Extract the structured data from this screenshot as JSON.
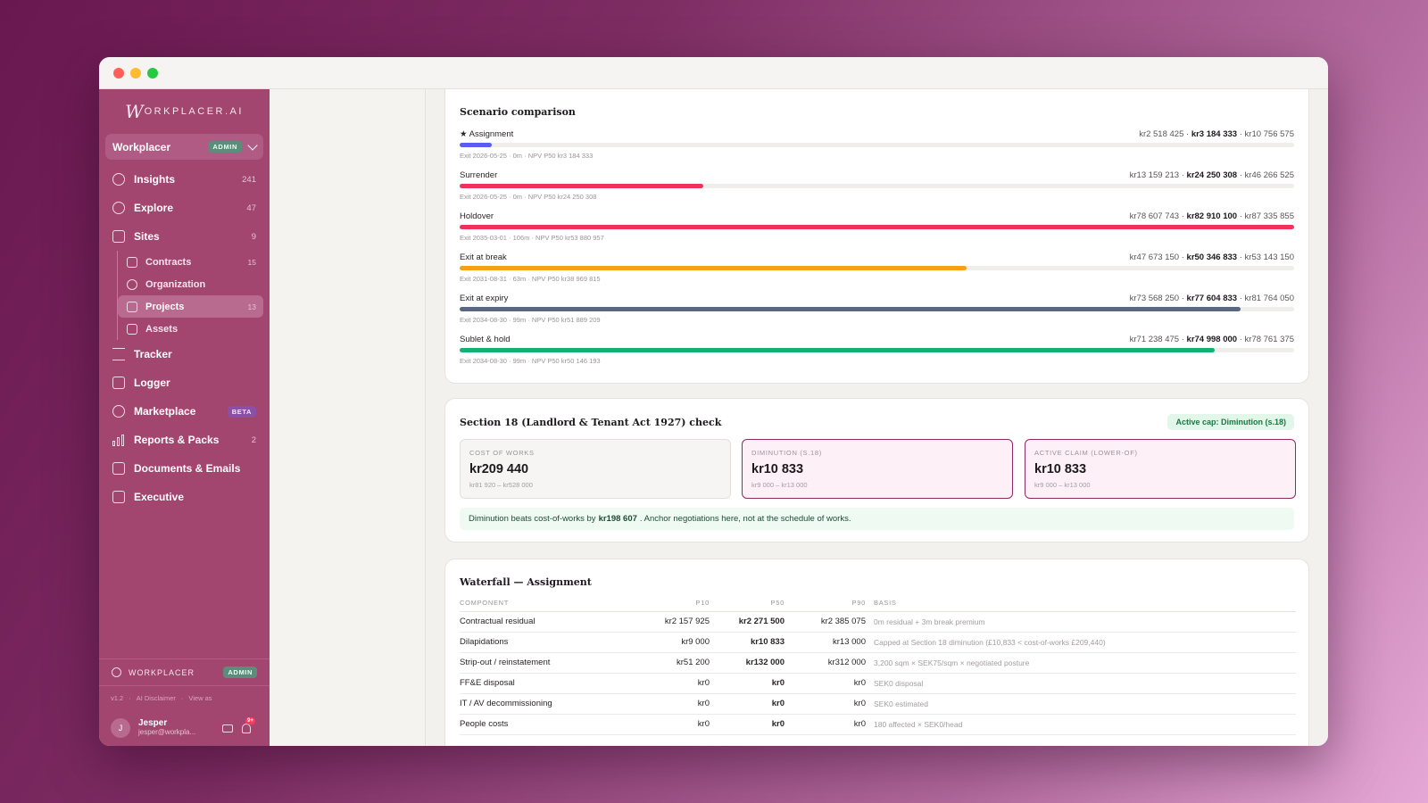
{
  "sidebar": {
    "logo_initial": "W",
    "logo_rest": "ORKPLACER.AI",
    "workspace": {
      "name": "Workplacer",
      "badge": "ADMIN"
    },
    "items": [
      {
        "label": "Insights",
        "count": "241"
      },
      {
        "label": "Explore",
        "count": "47"
      },
      {
        "label": "Sites",
        "count": "9"
      },
      {
        "label": "Tracker",
        "count": ""
      },
      {
        "label": "Logger",
        "count": ""
      },
      {
        "label": "Marketplace",
        "badge": "BETA"
      },
      {
        "label": "Reports & Packs",
        "count": "2"
      },
      {
        "label": "Documents & Emails",
        "count": ""
      },
      {
        "label": "Executive",
        "count": ""
      }
    ],
    "sub_items": [
      {
        "label": "Contracts",
        "count": "15"
      },
      {
        "label": "Organization",
        "count": ""
      },
      {
        "label": "Projects",
        "count": "13"
      },
      {
        "label": "Assets",
        "count": ""
      }
    ],
    "bottom": {
      "workspace_label": "WORKPLACER",
      "workspace_badge": "ADMIN",
      "version": "v1.2",
      "disclaimer": "AI Disclaimer",
      "view_as": "View as",
      "user_initial": "J",
      "user_name": "Jesper",
      "user_email": "jesper@workpla...",
      "notif_count": "9+"
    }
  },
  "scenario": {
    "title": "Scenario comparison",
    "colors": {
      "assignment": "#5b5cf0",
      "surrender": "#f0325a",
      "holdover": "#f0325a",
      "break": "#f5a113",
      "expiry": "#5a6780",
      "sublet": "#12b274"
    },
    "rows": [
      {
        "name": "★ Assignment",
        "p10": "kr2 518 425",
        "p50": "kr3 184 333",
        "p90": "kr10 756 575",
        "sub": "Exit 2026-05-25 · 0m · NPV P50 kr3 184 333",
        "fill": 0.038
      },
      {
        "name": "Surrender",
        "p10": "kr13 159 213",
        "p50": "kr24 250 308",
        "p90": "kr46 266 525",
        "sub": "Exit 2026-05-25 · 0m · NPV P50 kr24 250 308",
        "fill": 0.292
      },
      {
        "name": "Holdover",
        "p10": "kr78 607 743",
        "p50": "kr82 910 100",
        "p90": "kr87 335 855",
        "sub": "Exit 2035-03-01 · 106m · NPV P50 kr53 880 957",
        "fill": 1.0
      },
      {
        "name": "Exit at break",
        "p10": "kr47 673 150",
        "p50": "kr50 346 833",
        "p90": "kr53 143 150",
        "sub": "Exit 2031-08-31 · 63m · NPV P50 kr38 969 815",
        "fill": 0.607
      },
      {
        "name": "Exit at expiry",
        "p10": "kr73 568 250",
        "p50": "kr77 604 833",
        "p90": "kr81 764 050",
        "sub": "Exit 2034-08-30 · 99m · NPV P50 kr51 889 209",
        "fill": 0.936
      },
      {
        "name": "Sublet & hold",
        "p10": "kr71 238 475",
        "p50": "kr74 998 000",
        "p90": "kr78 761 375",
        "sub": "Exit 2034-08-30 · 99m · NPV P50 kr50 146 193",
        "fill": 0.905
      }
    ]
  },
  "section18": {
    "title": "Section 18 (Landlord & Tenant Act 1927) check",
    "pill": "Active cap: Diminution (s.18)",
    "kpis": [
      {
        "label": "COST OF WORKS",
        "value": "kr209 440",
        "range": "kr81 920 – kr528 000"
      },
      {
        "label": "DIMINUTION (S.18)",
        "value": "kr10 833",
        "range": "kr9 000 – kr13 000"
      },
      {
        "label": "ACTIVE CLAIM (LOWER-OF)",
        "value": "kr10 833",
        "range": "kr9 000 – kr13 000"
      }
    ],
    "note_pre": "Diminution beats cost-of-works by",
    "note_bold": "kr198 607",
    "note_post": ". Anchor negotiations here, not at the schedule of works."
  },
  "waterfall": {
    "title": "Waterfall — Assignment",
    "headers": {
      "component": "COMPONENT",
      "p10": "P10",
      "p50": "P50",
      "p90": "P90",
      "basis": "BASIS"
    },
    "rows": [
      {
        "component": "Contractual residual",
        "p10": "kr2 157 925",
        "p50": "kr2 271 500",
        "p90": "kr2 385 075",
        "basis": "0m residual + 3m break premium"
      },
      {
        "component": "Dilapidations",
        "p10": "kr9 000",
        "p50": "kr10 833",
        "p90": "kr13 000",
        "basis": "Capped at Section 18 diminution (£10,833 < cost-of-works £209,440)"
      },
      {
        "component": "Strip-out / reinstatement",
        "p10": "kr51 200",
        "p50": "kr132 000",
        "p90": "kr312 000",
        "basis": "3,200 sqm × SEK75/sqm × negotiated posture"
      },
      {
        "component": "FF&E disposal",
        "p10": "kr0",
        "p50": "kr0",
        "p90": "kr0",
        "basis": "SEK0 disposal"
      },
      {
        "component": "IT / AV decommissioning",
        "p10": "kr0",
        "p50": "kr0",
        "p90": "kr0",
        "basis": "SEK0 estimated"
      },
      {
        "component": "People costs",
        "p10": "kr0",
        "p50": "kr0",
        "p90": "kr0",
        "basis": "180 affected × SEK0/head"
      }
    ]
  }
}
